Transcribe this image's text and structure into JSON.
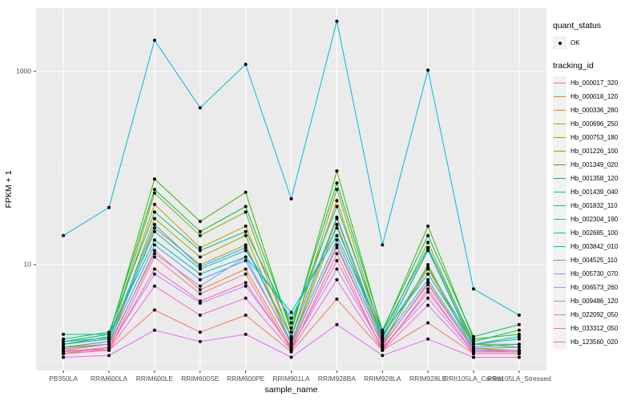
{
  "chart_data": {
    "type": "line",
    "xlabel": "sample_name",
    "ylabel": "FPKM + 1",
    "y_scale": "log10",
    "y_ticks": [
      10,
      1000
    ],
    "y_tick_labels": [
      "10",
      "1000"
    ],
    "y_minor_ticks": [
      1,
      100
    ],
    "grid": true,
    "legend_position": "right",
    "categories": [
      "PB350LA",
      "RRIM600LA",
      "RRIM600LE",
      "RRIM600SE",
      "RRIM600PE",
      "RRIM901LA",
      "RRIM928BA",
      "RRIM928LA",
      "RRIM928LE",
      "RRII105LA_Control",
      "RRII105LA_Stressed"
    ],
    "series": [
      {
        "name": "Hb_000017_320",
        "color": "#F8766D",
        "values": [
          1.3,
          1.3,
          3.4,
          2.0,
          3.0,
          1.25,
          4.4,
          1.3,
          2.5,
          1.2,
          1.2
        ]
      },
      {
        "name": "Hb_000018_120",
        "color": "#EA8331",
        "values": [
          1.2,
          1.4,
          14,
          5.5,
          9,
          1.4,
          16,
          1.45,
          6.5,
          1.3,
          1.25
        ]
      },
      {
        "name": "Hb_000336_280",
        "color": "#D89000",
        "values": [
          1.4,
          1.5,
          24,
          10,
          16,
          1.55,
          30,
          1.6,
          9.0,
          1.35,
          1.3
        ]
      },
      {
        "name": "Hb_000696_250",
        "color": "#C09B00",
        "values": [
          1.5,
          1.7,
          42,
          15,
          25,
          1.8,
          46,
          1.7,
          14.0,
          1.5,
          1.4
        ]
      },
      {
        "name": "Hb_000753_180",
        "color": "#A3A500",
        "values": [
          1.35,
          1.5,
          30,
          12,
          20,
          1.5,
          26,
          1.5,
          10,
          1.3,
          1.3
        ]
      },
      {
        "name": "Hb_001226_100",
        "color": "#7CAE00",
        "values": [
          1.4,
          1.6,
          55,
          20,
          35,
          1.7,
          60,
          1.8,
          17,
          1.5,
          1.5
        ]
      },
      {
        "name": "Hb_001349_020",
        "color": "#39B600",
        "values": [
          1.5,
          1.8,
          77,
          28,
          56,
          2.0,
          93,
          2.0,
          25,
          1.7,
          1.9
        ]
      },
      {
        "name": "Hb_001358_120",
        "color": "#00BB4E",
        "values": [
          1.6,
          1.9,
          60,
          22,
          40,
          2.2,
          70,
          2.1,
          20,
          1.8,
          2.4
        ]
      },
      {
        "name": "Hb_001439_040",
        "color": "#00BF7D",
        "values": [
          1.7,
          2.0,
          35,
          14,
          22,
          2.5,
          40,
          2.0,
          15,
          1.6,
          2.1
        ]
      },
      {
        "name": "Hb_001832_110",
        "color": "#00C1A3",
        "values": [
          1.9,
          1.9,
          18,
          8,
          12,
          3.2,
          20,
          1.9,
          8.0,
          1.5,
          1.8
        ]
      },
      {
        "name": "Hb_002304_190",
        "color": "#00BFC4",
        "values": [
          1.6,
          1.75,
          22,
          9,
          14,
          2.8,
          24,
          1.8,
          9.4,
          1.5,
          1.7
        ]
      },
      {
        "name": "Hb_002685_100",
        "color": "#00BAE0",
        "values": [
          20,
          39,
          2100,
          420,
          1180,
          48,
          3300,
          16,
          1030,
          5.6,
          3.0
        ]
      },
      {
        "name": "Hb_003842_010",
        "color": "#00B0F6",
        "values": [
          1.5,
          1.7,
          26,
          9.5,
          15,
          1.8,
          31,
          1.7,
          14.3,
          1.4,
          1.5
        ]
      },
      {
        "name": "Hb_004525_110",
        "color": "#35A2FF",
        "values": [
          1.4,
          1.6,
          16,
          7,
          11,
          1.6,
          18,
          1.6,
          7.0,
          1.35,
          1.4
        ]
      },
      {
        "name": "Hb_005730_070",
        "color": "#9590FF",
        "values": [
          1.3,
          1.5,
          13,
          6,
          12,
          1.5,
          15,
          1.5,
          6.2,
          1.3,
          1.3
        ]
      },
      {
        "name": "Hb_006573_260",
        "color": "#C77CFF",
        "values": [
          1.25,
          1.4,
          8,
          4,
          6,
          1.4,
          9,
          1.4,
          4.5,
          1.25,
          1.25
        ]
      },
      {
        "name": "Hb_009486_120",
        "color": "#E76BF3",
        "values": [
          1.1,
          1.15,
          2.1,
          1.6,
          1.9,
          1.1,
          2.4,
          1.15,
          1.7,
          1.1,
          1.1
        ]
      },
      {
        "name": "Hb_022092_050",
        "color": "#FA62DB",
        "values": [
          1.2,
          1.3,
          6,
          3,
          4.5,
          1.3,
          7,
          1.3,
          3.8,
          1.2,
          1.2
        ]
      },
      {
        "name": "Hb_033312_050",
        "color": "#FF62BC",
        "values": [
          1.25,
          1.35,
          9,
          4.2,
          6.5,
          1.35,
          11,
          1.35,
          5.2,
          1.25,
          1.25
        ]
      },
      {
        "name": "Hb_123560_020",
        "color": "#FF6A98",
        "values": [
          1.2,
          1.3,
          12,
          5,
          8,
          1.3,
          13,
          1.3,
          5.6,
          1.2,
          1.2
        ]
      }
    ],
    "legend": {
      "quant_status_title": "quant_status",
      "quant_status_items": [
        {
          "label": "OK"
        }
      ],
      "tracking_id_title": "tracking_id"
    },
    "colors": {
      "panel": "#EBEBEB",
      "grid_major": "#FFFFFF",
      "grid_minor": "#FFFFFF",
      "tick_text": "#4D4D4D",
      "axis_title": "#000000",
      "point": "#000000",
      "legend_key_bg": "#F2F2F2"
    }
  }
}
